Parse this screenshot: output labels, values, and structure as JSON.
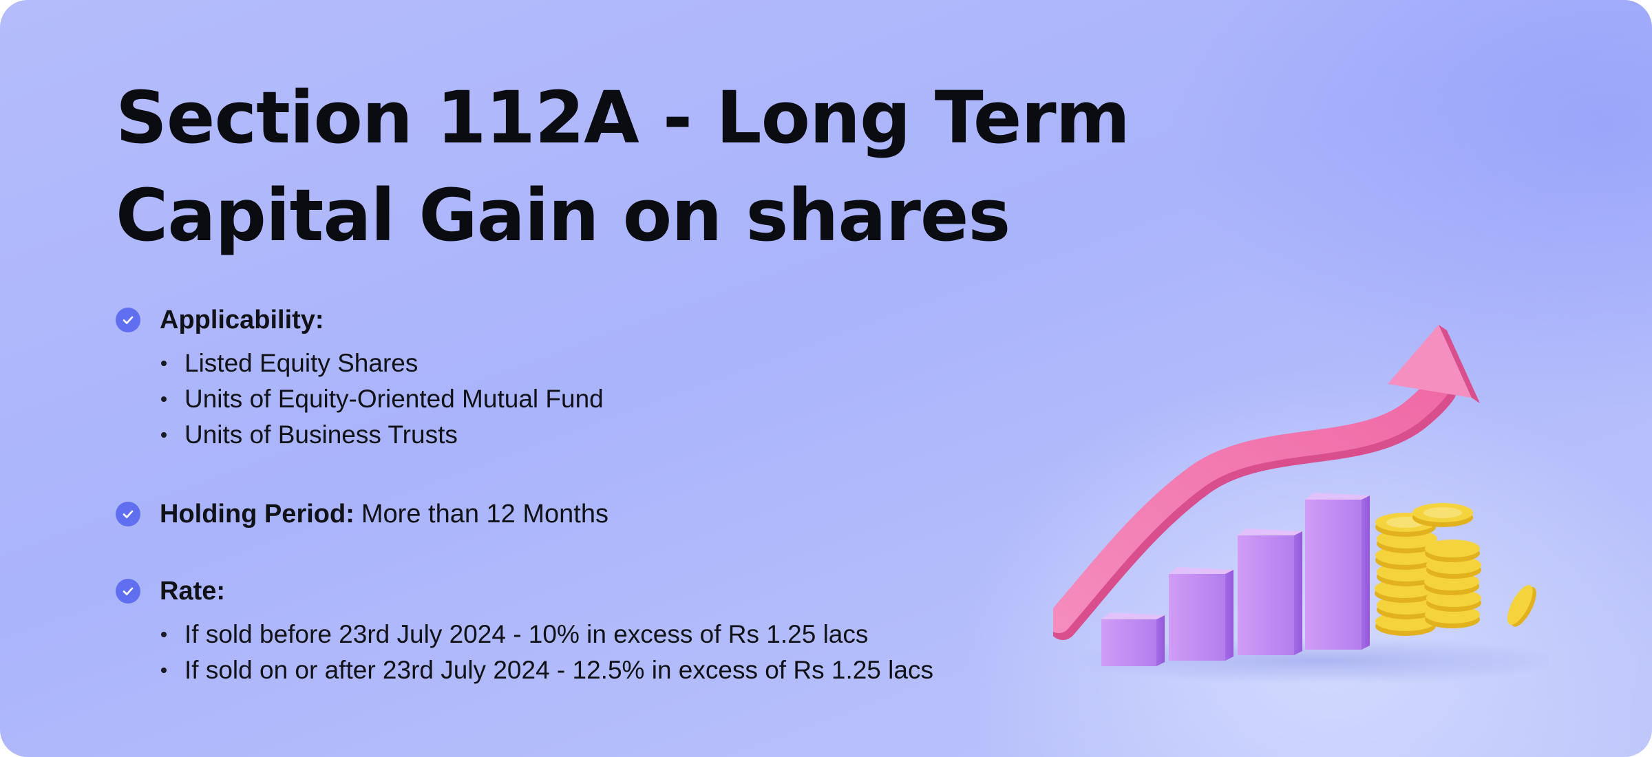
{
  "title": {
    "line1": "Section 112A - Long Term",
    "line2": "Capital Gain on shares"
  },
  "applicability": {
    "label": "Applicability:",
    "items": [
      "Listed Equity Shares",
      "Units of Equity-Oriented Mutual Fund",
      "Units of Business Trusts"
    ]
  },
  "holding_period": {
    "label": "Holding Period:",
    "value": "More than 12 Months"
  },
  "rate": {
    "label": "Rate:",
    "items": [
      "If sold before 23rd July 2024 - 10% in excess of Rs 1.25 lacs",
      "If sold on or after 23rd July 2024 - 12.5% in excess of Rs 1.25 lacs"
    ]
  },
  "colors": {
    "background": "#aab4fb",
    "check_icon": "#5f6ff0",
    "arrow": "#f07fb2",
    "bars": "#c08af0",
    "coins": "#f5d33c"
  },
  "icons": {
    "heading_marker": "check-circle-icon",
    "illustration": "growth-chart-coins-illustration"
  }
}
